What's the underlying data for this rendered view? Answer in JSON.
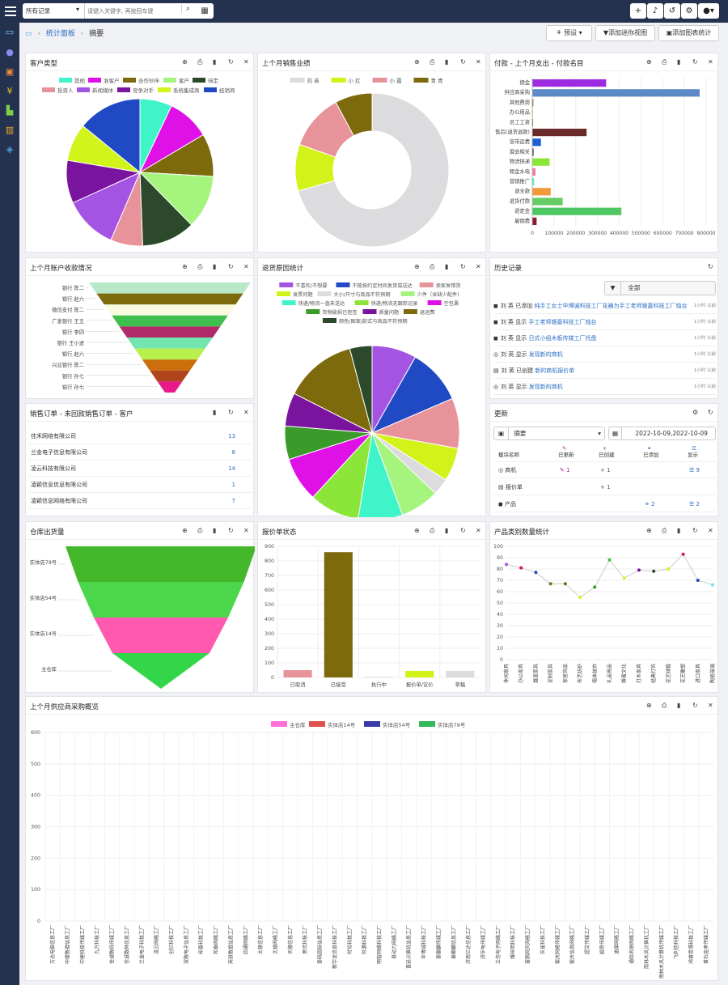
{
  "topbar": {
    "filter": "所有记录",
    "search_placeholder": "请键入关键字, 再按回车键"
  },
  "breadcrumb": {
    "dashboard": "统计面板",
    "current": "摘要"
  },
  "toolbar": {
    "preset": "预设",
    "add_mini": "添加迷你视图",
    "add_chart": "添加图表统计"
  },
  "colors": {
    "nav": "#24324f",
    "accent": "#4aa3df"
  },
  "panels": {
    "customer_type": {
      "title": "客户类型"
    },
    "last_month_sales": {
      "title": "上个月销售业绩"
    },
    "payments": {
      "title": "付款 - 上个月支出 - 付款名目"
    },
    "receivables": {
      "title": "上个月账户收款情况"
    },
    "return_reasons": {
      "title": "退货原因统计"
    },
    "history": {
      "title": "历史记录",
      "filter": "全部"
    },
    "unpaid_orders": {
      "title": "销售订单 - 未回款销售订单 - 客户"
    },
    "updates": {
      "title": "更新",
      "select": "摘要",
      "date": "2022-10-09,2022-10-09"
    },
    "warehouse": {
      "title": "仓库出货量"
    },
    "quotes": {
      "title": "报价单状态"
    },
    "product_cat": {
      "title": "产品类别数量统计"
    },
    "supplier": {
      "title": "上个月供应商采购概览"
    }
  },
  "history": [
    {
      "icon": "cube-icon",
      "user": "刘 英",
      "action": "已添加",
      "text": "纯手工女士毕博诚科技工厂花器为手工老师银嘉科技工厂烛台",
      "time": "1小时 以前"
    },
    {
      "icon": "cube-icon",
      "user": "刘 英",
      "action": "显示",
      "text": "手工老师银嘉科技工厂烛台",
      "time": "1小时 以前"
    },
    {
      "icon": "cube-icon",
      "user": "刘 英",
      "action": "显示",
      "text": "日式小组木板传媒工厂托盘",
      "time": "1小时 以前"
    },
    {
      "icon": "target-icon",
      "user": "刘 英",
      "action": "显示",
      "text": "发现新的商机",
      "time": "1小时 以前"
    },
    {
      "icon": "doc-icon",
      "user": "刘 英",
      "action": "已创建",
      "text": "新的商机报价单",
      "time": "1小时 以前"
    },
    {
      "icon": "target-icon",
      "user": "刘 英",
      "action": "显示",
      "text": "发现新的商机",
      "time": "1小时 以前"
    }
  ],
  "unpaid": [
    {
      "name": "佳禾网络有限公司",
      "count": "13"
    },
    {
      "name": "兰金电子信息有限公司",
      "count": "8"
    },
    {
      "name": "凌云科技有限公司",
      "count": "14"
    },
    {
      "name": "凌颖信息信息有限公司",
      "count": "1"
    },
    {
      "name": "凌颖信息网络有限公司",
      "count": "7"
    }
  ],
  "updates_table": {
    "headers": [
      "模块名称",
      "已更新",
      "已创建",
      "已添加",
      "显示"
    ],
    "rows": [
      {
        "name": "商机",
        "updated": "1",
        "created": "1",
        "added": "",
        "shown": "9"
      },
      {
        "name": "报价单",
        "updated": "",
        "created": "1",
        "added": "",
        "shown": ""
      },
      {
        "name": "产品",
        "updated": "",
        "created": "",
        "added": "2",
        "shown": "2"
      }
    ]
  },
  "chart_data": [
    {
      "id": "customer_type",
      "type": "pie",
      "legend": [
        "其他",
        "准客户",
        "合作伙伴",
        "客户",
        "待定",
        "投资人",
        "新闻媒体",
        "竞争对手",
        "系统集成商",
        "经销商"
      ],
      "values": [
        6,
        8,
        8,
        10,
        10,
        6,
        10,
        8,
        7,
        12
      ],
      "colors": [
        "#3ff4c9",
        "#e011e6",
        "#7c6a0c",
        "#a4f47d",
        "#2c4a2b",
        "#e8939a",
        "#a453e3",
        "#7a139d",
        "#d1f51a",
        "#2049c4"
      ]
    },
    {
      "id": "last_month_sales",
      "type": "doughnut",
      "legend": [
        "刘 英",
        "小 红",
        "小 霞",
        "青 青"
      ],
      "values": [
        72,
        10,
        12,
        8
      ],
      "colors": [
        "#dcdcdf",
        "#d3f21a",
        "#e8939a",
        "#7c6a0c"
      ]
    },
    {
      "id": "payments",
      "type": "bar-horizontal",
      "categories": [
        "佣金",
        "供应商采购",
        "其他费用",
        "办公用品",
        "员工工资",
        "售后(退货退款)",
        "宣带运费",
        "展会相关",
        "物流快递",
        "租金水电",
        "营销推广",
        "退全款",
        "退货付款",
        "退定金",
        "雇佣费"
      ],
      "values": [
        340000,
        770000,
        5000,
        3000,
        4000,
        250000,
        40000,
        6000,
        80000,
        15000,
        8000,
        85000,
        140000,
        410000,
        20000
      ],
      "colors": [
        "#9d2be0",
        "#5b8ac7",
        "#6b5d1d",
        "#c9e84e",
        "#7c6a0c",
        "#6b2a2a",
        "#1f5fd6",
        "#333333",
        "#8ce63a",
        "#f07aa0",
        "#3ff4c9",
        "#f09a3a",
        "#66cc66",
        "#4fc763",
        "#8b1a2a"
      ],
      "xlim": [
        0,
        800000
      ],
      "ticks": [
        "0",
        "100000",
        "200000",
        "300000",
        "400000",
        "500000",
        "600000",
        "700000",
        "800000"
      ]
    },
    {
      "id": "receivables",
      "type": "funnel",
      "categories": [
        "银行 陈二",
        "银行 赵六",
        "微信支付 陈二",
        "广发银行 王五",
        "银行 李四",
        "银行 王小进",
        "银行 赵六",
        "兴业银行 陈二",
        "银行 孙七",
        "银行 孙七"
      ],
      "colors": [
        "#b8e8c8",
        "#7c6a0c",
        "#f8fbe0",
        "#3fbf4e",
        "#b02a6a",
        "#73e6b0",
        "#b8f04e",
        "#cc6e0c",
        "#b0441a",
        "#e81a8a"
      ]
    },
    {
      "id": "return_reasons",
      "type": "pie",
      "legend": [
        "不喜欢/不想要",
        "不能按约定时间发货或送达",
        "卖家发错货",
        "发票问题",
        "大小/尺寸与商品不符预期",
        "少件（含缺少配件）",
        "快递/物流一直未送达",
        "快递/物流无跟踪记录",
        "空包裹",
        "货物破损已拒签",
        "质量问题",
        "退运费",
        "颜色/图案/款式与商品不符预期"
      ],
      "values": [
        8,
        10,
        9,
        6,
        3,
        7,
        8,
        9,
        8,
        6,
        6,
        13,
        4
      ],
      "colors": [
        "#a453e3",
        "#2049c4",
        "#e8939a",
        "#d3f21a",
        "#dcdcdf",
        "#a4f47d",
        "#3ff4c9",
        "#8ce63a",
        "#e011e6",
        "#3a9a2a",
        "#7a139d",
        "#7c6a0c",
        "#2c4a2b"
      ]
    },
    {
      "id": "warehouse",
      "type": "funnel",
      "categories": [
        "实体店79号",
        "实体店54号",
        "实体店14号",
        "主仓库"
      ],
      "colors": [
        "#44b82a",
        "#4bd64b",
        "#ff59b0",
        "#33d648"
      ]
    },
    {
      "id": "quotes",
      "type": "bar",
      "categories": [
        "已取消",
        "已接受",
        "执行中",
        "报价单/议价",
        "草稿"
      ],
      "values": [
        50,
        860,
        5,
        45,
        45
      ],
      "colors": [
        "#e8939a",
        "#7c6a0c",
        "#dcdcdf",
        "#d3f21a",
        "#dcdcdf"
      ],
      "ylim": [
        0,
        900
      ],
      "ticks": [
        "0",
        "100",
        "200",
        "300",
        "400",
        "500",
        "600",
        "700",
        "800",
        "900"
      ]
    },
    {
      "id": "product_cat",
      "type": "line",
      "categories": [
        "休闲家具",
        "办公家具",
        "器皿家具",
        "定制家具",
        "家居饰品",
        "布艺纺织",
        "墙体装饰",
        "礼品用品",
        "蜂蜜文化",
        "灯木家具",
        "经典灯饰",
        "花艺绿植",
        "花艺雕塑",
        "进口家具",
        "陶瓷玻璃"
      ],
      "values": [
        84,
        81,
        77,
        67,
        67,
        55,
        64,
        88,
        72,
        79,
        78,
        80,
        93,
        70,
        66
      ],
      "ylim": [
        0,
        100
      ],
      "ticks": [
        "0",
        "10",
        "20",
        "30",
        "40",
        "50",
        "60",
        "70",
        "80",
        "90",
        "100"
      ],
      "colors": [
        "#a453e3",
        "#e0114f",
        "#2049c4",
        "#7c6a0c",
        "#7c6a0c",
        "#d3f21a",
        "#3a9a2a",
        "#3fbf4e",
        "#d3f21a",
        "#7a139d",
        "#2c4a2b",
        "#d3f21a",
        "#e0114f",
        "#2049c4",
        "#73e6e6"
      ]
    },
    {
      "id": "supplier",
      "type": "bar",
      "legend": [
        "主仓库",
        "实体店14号",
        "实体店54号",
        "实体店79号"
      ],
      "legend_colors": [
        "#ff6fd6",
        "#e0514f",
        "#3a3aa8",
        "#33b85a"
      ],
      "categories": [
        "万达电脑信息工厂",
        "中建数据信息工厂",
        "中建科技传媒工厂",
        "九方科技工厂",
        "佳诚数码传媒工厂",
        "信诚数码信息工厂",
        "兰金电子科技工厂",
        "凌云网络工厂",
        "创亿科技工厂",
        "双敬电子信息工厂",
        "和泰科技工厂",
        "和泰网络工厂",
        "商铁数据信息工厂",
        "四通网络工厂",
        "太极信息工厂",
        "太极网络工厂",
        "天德信息工厂",
        "思优科技工厂",
        "泰码国际信息工厂",
        "新宇龙信息科技工厂",
        "时珍科技工厂",
        "时源科技工厂",
        "明智网络科技工厂",
        "易动力网络工厂",
        "晋民计算机信息工厂",
        "毕博诚科技工厂",
        "泰麒麟传媒工厂",
        "泰麒麟信息工厂",
        "济南亿达信息工厂",
        "济宇电传媒工厂",
        "立信电子网络工厂",
        "维旺明科技工厂",
        "富鹏网天网络工厂",
        "灰雀科技工厂",
        "紫庆网络传媒工厂",
        "紫庆信息网络工厂",
        "超艾传媒工厂",
        "趋势传媒工厂",
        "迪摩网络工厂",
        "通际名联网络工厂",
        "雨林木风计算机工厂",
        "雨林木风计算机传媒工厂",
        "飞利信科技工厂",
        "鸿睿思博科技工厂",
        "黄石金承传媒工厂"
      ],
      "ylim": [
        0,
        600
      ],
      "ticks": [
        "0",
        "100",
        "200",
        "300",
        "400",
        "500",
        "600"
      ]
    }
  ]
}
